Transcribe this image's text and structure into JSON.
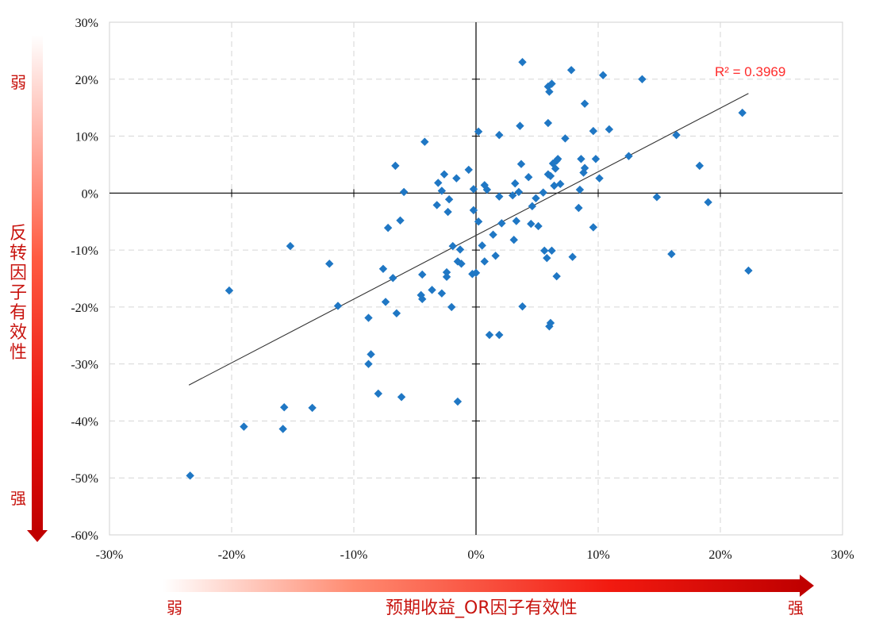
{
  "labels": {
    "y_weak": "弱",
    "y_strong": "强",
    "y_title": "反转因子有效性",
    "x_weak": "弱",
    "x_strong": "强",
    "x_title": "预期收益_OR因子有效性"
  },
  "colors": {
    "point": "#1f77c4",
    "trend": "#333333",
    "r2": "#ff2a2a",
    "arrow": "#c00000",
    "grid": "#d6d6d6"
  },
  "chart_data": {
    "type": "scatter",
    "title": "",
    "xlabel": "预期收益_OR因子有效性",
    "ylabel": "反转因子有效性",
    "xlim": [
      -30,
      30
    ],
    "ylim": [
      -60,
      30
    ],
    "x_ticks": [
      "-30%",
      "-20%",
      "-10%",
      "0%",
      "10%",
      "20%",
      "30%"
    ],
    "y_ticks": [
      "30%",
      "20%",
      "10%",
      "0%",
      "-10%",
      "-20%",
      "-30%",
      "-40%",
      "-50%",
      "-60%"
    ],
    "grid": true,
    "trendline": {
      "x": [
        -23.5,
        22.3
      ],
      "y": [
        -33.7,
        17.5
      ]
    },
    "r_squared_label": "R² = 0.3969",
    "points": [
      [
        -23.4,
        -49.6
      ],
      [
        -20.2,
        -17.1
      ],
      [
        -19.0,
        -41.0
      ],
      [
        -15.8,
        -41.4
      ],
      [
        -15.7,
        -37.6
      ],
      [
        -15.2,
        -9.3
      ],
      [
        -13.4,
        -37.7
      ],
      [
        -12.0,
        -12.4
      ],
      [
        -11.3,
        -19.8
      ],
      [
        -8.8,
        -21.9
      ],
      [
        -8.8,
        -30.0
      ],
      [
        -8.6,
        -28.3
      ],
      [
        -8.0,
        -35.2
      ],
      [
        -7.6,
        -13.3
      ],
      [
        -7.4,
        -19.1
      ],
      [
        -7.2,
        -6.1
      ],
      [
        -6.8,
        -14.9
      ],
      [
        -6.6,
        4.8
      ],
      [
        -6.5,
        -21.1
      ],
      [
        -6.2,
        -4.8
      ],
      [
        -6.1,
        -35.8
      ],
      [
        -5.9,
        0.2
      ],
      [
        -4.5,
        -17.9
      ],
      [
        -4.4,
        -14.3
      ],
      [
        -4.4,
        -18.6
      ],
      [
        -4.2,
        9.0
      ],
      [
        -3.6,
        -17.0
      ],
      [
        -3.2,
        -2.1
      ],
      [
        -3.1,
        1.8
      ],
      [
        -2.8,
        -17.6
      ],
      [
        -2.8,
        0.4
      ],
      [
        -2.6,
        3.3
      ],
      [
        -2.4,
        -13.9
      ],
      [
        -2.4,
        -14.7
      ],
      [
        -2.3,
        -3.3
      ],
      [
        -2.2,
        -1.1
      ],
      [
        -2.0,
        -20.0
      ],
      [
        -1.9,
        -9.3
      ],
      [
        -1.6,
        2.6
      ],
      [
        -1.5,
        -36.6
      ],
      [
        -1.5,
        -12.0
      ],
      [
        -1.3,
        -9.9
      ],
      [
        -1.2,
        -12.4
      ],
      [
        -0.6,
        4.1
      ],
      [
        -0.3,
        -14.2
      ],
      [
        -0.2,
        -3.0
      ],
      [
        -0.2,
        0.7
      ],
      [
        0.0,
        -14.0
      ],
      [
        0.2,
        10.8
      ],
      [
        0.2,
        -5.0
      ],
      [
        0.5,
        -9.2
      ],
      [
        0.7,
        -12.0
      ],
      [
        0.7,
        1.4
      ],
      [
        0.9,
        0.6
      ],
      [
        1.1,
        -24.9
      ],
      [
        1.4,
        -7.3
      ],
      [
        1.6,
        -11.0
      ],
      [
        1.9,
        -24.9
      ],
      [
        1.9,
        10.2
      ],
      [
        1.9,
        -0.6
      ],
      [
        2.1,
        -5.3
      ],
      [
        3.0,
        -0.4
      ],
      [
        3.1,
        -8.2
      ],
      [
        3.2,
        1.7
      ],
      [
        3.3,
        -4.9
      ],
      [
        3.5,
        0.2
      ],
      [
        3.6,
        11.8
      ],
      [
        3.7,
        5.1
      ],
      [
        3.8,
        23.0
      ],
      [
        3.8,
        -19.9
      ],
      [
        4.3,
        2.8
      ],
      [
        4.5,
        -5.4
      ],
      [
        4.6,
        -2.3
      ],
      [
        4.9,
        -0.9
      ],
      [
        5.1,
        -5.8
      ],
      [
        5.5,
        0.1
      ],
      [
        5.6,
        -10.1
      ],
      [
        5.8,
        -11.4
      ],
      [
        5.9,
        12.3
      ],
      [
        5.9,
        18.7
      ],
      [
        5.9,
        3.3
      ],
      [
        6.0,
        17.8
      ],
      [
        6.0,
        -23.4
      ],
      [
        6.1,
        -22.8
      ],
      [
        6.1,
        3.0
      ],
      [
        6.2,
        19.2
      ],
      [
        6.2,
        -10.1
      ],
      [
        6.3,
        5.2
      ],
      [
        6.4,
        1.3
      ],
      [
        6.5,
        4.3
      ],
      [
        6.6,
        5.7
      ],
      [
        6.6,
        -14.6
      ],
      [
        6.7,
        6.0
      ],
      [
        6.9,
        1.6
      ],
      [
        7.3,
        9.6
      ],
      [
        7.8,
        21.6
      ],
      [
        7.9,
        -11.2
      ],
      [
        8.4,
        -2.6
      ],
      [
        8.5,
        0.6
      ],
      [
        8.6,
        6.0
      ],
      [
        8.8,
        3.6
      ],
      [
        8.9,
        15.7
      ],
      [
        8.9,
        4.4
      ],
      [
        9.6,
        10.9
      ],
      [
        9.6,
        -6.0
      ],
      [
        9.8,
        6.0
      ],
      [
        10.1,
        2.6
      ],
      [
        10.4,
        20.7
      ],
      [
        10.9,
        11.2
      ],
      [
        12.5,
        6.5
      ],
      [
        13.6,
        20.0
      ],
      [
        14.8,
        -0.7
      ],
      [
        16.0,
        -10.7
      ],
      [
        16.4,
        10.2
      ],
      [
        18.3,
        4.8
      ],
      [
        19.0,
        -1.6
      ],
      [
        21.8,
        14.1
      ],
      [
        22.3,
        -13.6
      ]
    ]
  }
}
